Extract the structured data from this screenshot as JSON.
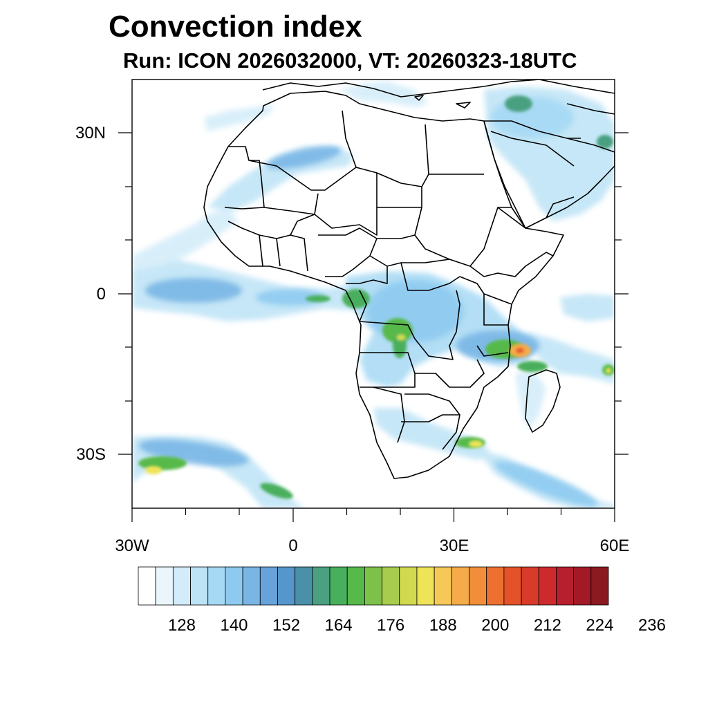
{
  "title": "Convection index",
  "subtitle": "Run: ICON 2026032000,  VT: 20260323-18UTC",
  "map": {
    "lat_labels": [
      "30N",
      "0",
      "30S"
    ],
    "lon_labels": [
      "30W",
      "0",
      "30E",
      "60E"
    ],
    "extent": {
      "lon_min": -30,
      "lon_max": 60,
      "lat_min": -40,
      "lat_max": 40
    }
  },
  "colorbar": {
    "tick_labels": [
      "128",
      "140",
      "152",
      "164",
      "176",
      "188",
      "200",
      "212",
      "224",
      "236"
    ],
    "colors": [
      "#ffffff",
      "#eaf6fc",
      "#d2ecf9",
      "#bde3f6",
      "#a6d9f4",
      "#8ecaf0",
      "#79b6e5",
      "#67a3d8",
      "#5696cc",
      "#4a90a8",
      "#4aa080",
      "#48af5c",
      "#57b94a",
      "#7dc14a",
      "#a8cc4d",
      "#d1d94f",
      "#efe458",
      "#f6c857",
      "#f5ab49",
      "#f28e3a",
      "#ee7030",
      "#e4522a",
      "#d93b2a",
      "#cc2a2d",
      "#b81f2e",
      "#a21a26",
      "#8a1920"
    ]
  }
}
